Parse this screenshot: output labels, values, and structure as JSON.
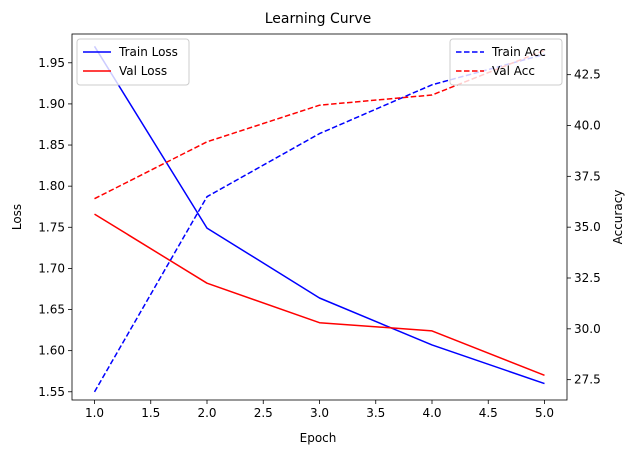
{
  "chart_data": {
    "type": "line",
    "title": "Learning Curve",
    "xlabel": "Epoch",
    "ylabel_left": "Loss",
    "ylabel_right": "Accuracy",
    "x": [
      1,
      2,
      3,
      4,
      5
    ],
    "xlim": [
      0.8,
      5.2
    ],
    "ylim_left": [
      1.54,
      1.985
    ],
    "ylim_right": [
      26.5,
      44.5
    ],
    "xticks": [
      1.0,
      1.5,
      2.0,
      2.5,
      3.0,
      3.5,
      4.0,
      4.5,
      5.0
    ],
    "xtick_labels": [
      "1.0",
      "1.5",
      "2.0",
      "2.5",
      "3.0",
      "3.5",
      "4.0",
      "4.5",
      "5.0"
    ],
    "yticks_left": [
      1.55,
      1.6,
      1.65,
      1.7,
      1.75,
      1.8,
      1.85,
      1.9,
      1.95
    ],
    "ytick_labels_left": [
      "1.55",
      "1.60",
      "1.65",
      "1.70",
      "1.75",
      "1.80",
      "1.85",
      "1.90",
      "1.95"
    ],
    "yticks_right": [
      27.5,
      30.0,
      32.5,
      35.0,
      37.5,
      40.0,
      42.5
    ],
    "ytick_labels_right": [
      "27.5",
      "30.0",
      "32.5",
      "35.0",
      "37.5",
      "40.0",
      "42.5"
    ],
    "grid": false,
    "series": [
      {
        "name": "Train Loss",
        "axis": "left",
        "style": "solid",
        "color": "#0000ff",
        "values": [
          1.97,
          1.749,
          1.664,
          1.607,
          1.56
        ]
      },
      {
        "name": "Val Loss",
        "axis": "left",
        "style": "solid",
        "color": "#ff0000",
        "values": [
          1.766,
          1.682,
          1.634,
          1.624,
          1.57
        ]
      },
      {
        "name": "Train Acc",
        "axis": "right",
        "style": "dashed",
        "color": "#0000ff",
        "values": [
          26.9,
          36.5,
          39.6,
          42.0,
          43.5
        ]
      },
      {
        "name": "Val Acc",
        "axis": "right",
        "style": "dashed",
        "color": "#ff0000",
        "values": [
          36.4,
          39.2,
          41.0,
          41.5,
          43.7
        ]
      }
    ],
    "legends": [
      {
        "placement": "top-left",
        "entries": [
          "Train Loss",
          "Val Loss"
        ]
      },
      {
        "placement": "top-right",
        "entries": [
          "Train Acc",
          "Val Acc"
        ]
      }
    ]
  }
}
